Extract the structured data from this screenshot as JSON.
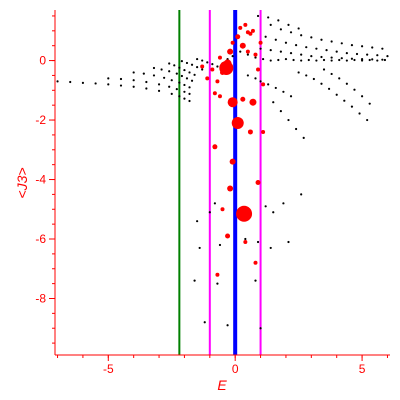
{
  "chart_data": {
    "type": "scatter",
    "title": "",
    "xlabel": "E",
    "ylabel": "<J3>",
    "xlim": [
      -7.1,
      6.1
    ],
    "ylim": [
      -9.9,
      1.7
    ],
    "x_ticks": [
      -5,
      0,
      5
    ],
    "x_tick_labels": [
      "-5",
      "0",
      "5"
    ],
    "y_ticks": [
      0,
      -2,
      -4,
      -6,
      -8
    ],
    "y_tick_labels": [
      "0",
      "-2",
      "-4",
      "-6",
      "-8"
    ],
    "grid": false,
    "legend": "none",
    "vertical_lines": [
      {
        "x": -2.2,
        "color": "#008000",
        "style": "thin"
      },
      {
        "x": -1.0,
        "color": "#ff00ff",
        "style": "thin"
      },
      {
        "x": 0.0,
        "color": "#0000ff",
        "style": "thick"
      },
      {
        "x": 1.0,
        "color": "#ff00ff",
        "style": "thin"
      }
    ],
    "series": [
      {
        "color": "#000000",
        "marker": "small-dot",
        "points": [
          [
            -7.0,
            -0.7
          ],
          [
            -6.5,
            -0.72
          ],
          [
            -6.0,
            -0.75
          ],
          [
            -5.5,
            -0.77
          ],
          [
            -5.0,
            -0.8
          ],
          [
            -4.5,
            -0.84
          ],
          [
            -4.0,
            -0.88
          ],
          [
            -3.5,
            -0.94
          ],
          [
            -3.0,
            -1.02
          ],
          [
            -2.5,
            -1.12
          ],
          [
            -2.2,
            -1.2
          ],
          [
            -2.0,
            -1.28
          ],
          [
            -1.8,
            -1.36
          ],
          [
            -5.0,
            -0.6
          ],
          [
            -4.5,
            -0.62
          ],
          [
            -4.0,
            -0.66
          ],
          [
            -3.5,
            -0.72
          ],
          [
            -3.0,
            -0.8
          ],
          [
            -2.6,
            -0.88
          ],
          [
            -2.3,
            -0.96
          ],
          [
            -2.0,
            -1.05
          ],
          [
            -1.8,
            -1.12
          ],
          [
            -4.0,
            -0.4
          ],
          [
            -3.6,
            -0.44
          ],
          [
            -3.2,
            -0.5
          ],
          [
            -2.8,
            -0.58
          ],
          [
            -2.5,
            -0.66
          ],
          [
            -2.2,
            -0.74
          ],
          [
            -2.0,
            -0.82
          ],
          [
            -1.8,
            -0.9
          ],
          [
            -3.2,
            -0.25
          ],
          [
            -2.9,
            -0.3
          ],
          [
            -2.6,
            -0.36
          ],
          [
            -2.3,
            -0.44
          ],
          [
            -2.1,
            -0.52
          ],
          [
            -1.9,
            -0.6
          ],
          [
            -1.7,
            -0.68
          ],
          [
            -2.6,
            -0.1
          ],
          [
            -2.4,
            -0.16
          ],
          [
            -2.2,
            -0.24
          ],
          [
            -2.0,
            -0.32
          ],
          [
            -1.8,
            -0.4
          ],
          [
            -1.6,
            -0.48
          ],
          [
            -2.1,
            -0.02
          ],
          [
            -1.9,
            -0.08
          ],
          [
            -1.7,
            -0.14
          ],
          [
            -1.5,
            -0.22
          ],
          [
            -1.3,
            -0.3
          ],
          [
            -1.5,
            0.05
          ],
          [
            -1.3,
            0.0
          ],
          [
            -1.1,
            -0.06
          ],
          [
            -0.9,
            -0.12
          ],
          [
            -0.7,
            -0.2
          ],
          [
            -0.5,
            -0.1
          ],
          [
            -0.3,
            0.05
          ],
          [
            -0.1,
            0.15
          ],
          [
            0.2,
            0.3
          ],
          [
            0.5,
            0.2
          ],
          [
            0.8,
            0.1
          ],
          [
            1.1,
            0.05
          ],
          [
            1.4,
            0.0
          ],
          [
            1.7,
            0.02
          ],
          [
            2.0,
            0.05
          ],
          [
            2.3,
            0.02
          ],
          [
            2.6,
            0.0
          ],
          [
            2.9,
            0.02
          ],
          [
            3.2,
            0.0
          ],
          [
            3.5,
            0.02
          ],
          [
            3.8,
            0.0
          ],
          [
            4.1,
            0.02
          ],
          [
            4.4,
            0.0
          ],
          [
            4.7,
            0.02
          ],
          [
            5.0,
            0.0
          ],
          [
            5.3,
            0.02
          ],
          [
            5.6,
            0.0
          ],
          [
            5.9,
            0.02
          ],
          [
            1.0,
            0.4
          ],
          [
            1.4,
            0.35
          ],
          [
            1.8,
            0.3
          ],
          [
            2.2,
            0.25
          ],
          [
            2.6,
            0.2
          ],
          [
            3.0,
            0.15
          ],
          [
            3.4,
            0.12
          ],
          [
            3.8,
            0.1
          ],
          [
            4.2,
            0.08
          ],
          [
            4.6,
            0.06
          ],
          [
            5.0,
            0.05
          ],
          [
            5.4,
            0.04
          ],
          [
            5.8,
            0.03
          ],
          [
            1.2,
            0.8
          ],
          [
            1.6,
            0.7
          ],
          [
            2.0,
            0.6
          ],
          [
            2.4,
            0.52
          ],
          [
            2.8,
            0.45
          ],
          [
            3.2,
            0.4
          ],
          [
            3.6,
            0.35
          ],
          [
            4.0,
            0.3
          ],
          [
            4.4,
            0.25
          ],
          [
            4.8,
            0.22
          ],
          [
            5.2,
            0.2
          ],
          [
            5.6,
            0.18
          ],
          [
            6.0,
            0.15
          ],
          [
            1.4,
            1.2
          ],
          [
            1.8,
            1.05
          ],
          [
            2.2,
            0.95
          ],
          [
            2.6,
            0.85
          ],
          [
            3.0,
            0.78
          ],
          [
            3.4,
            0.7
          ],
          [
            3.8,
            0.64
          ],
          [
            4.2,
            0.58
          ],
          [
            4.6,
            0.52
          ],
          [
            5.0,
            0.48
          ],
          [
            5.4,
            0.44
          ],
          [
            5.8,
            0.4
          ],
          [
            0.9,
            1.5
          ],
          [
            1.3,
            1.45
          ],
          [
            1.7,
            1.35
          ],
          [
            2.1,
            1.2
          ],
          [
            2.5,
            1.08
          ],
          [
            0.5,
            -0.5
          ],
          [
            0.8,
            -0.6
          ],
          [
            1.0,
            -0.7
          ],
          [
            1.3,
            -0.8
          ],
          [
            1.6,
            -0.92
          ],
          [
            1.9,
            -1.05
          ],
          [
            2.2,
            -1.2
          ],
          [
            2.5,
            -0.4
          ],
          [
            2.8,
            -0.5
          ],
          [
            3.1,
            -0.62
          ],
          [
            3.4,
            -0.78
          ],
          [
            3.7,
            -0.95
          ],
          [
            4.0,
            -1.15
          ],
          [
            4.3,
            -1.35
          ],
          [
            4.6,
            -1.55
          ],
          [
            4.9,
            -1.78
          ],
          [
            5.2,
            -2.0
          ],
          [
            3.5,
            -0.3
          ],
          [
            3.8,
            -0.45
          ],
          [
            4.1,
            -0.6
          ],
          [
            4.4,
            -0.78
          ],
          [
            4.7,
            -0.98
          ],
          [
            5.0,
            -1.2
          ],
          [
            5.3,
            -1.45
          ],
          [
            1.5,
            -1.4
          ],
          [
            1.8,
            -1.7
          ],
          [
            2.1,
            -2.0
          ],
          [
            2.4,
            -2.3
          ],
          [
            2.7,
            -2.6
          ],
          [
            -1.5,
            -5.4
          ],
          [
            -1.0,
            -5.1
          ],
          [
            -0.8,
            -4.8
          ],
          [
            0.5,
            -5.0
          ],
          [
            1.2,
            -4.9
          ],
          [
            1.5,
            -5.1
          ],
          [
            1.9,
            -4.8
          ],
          [
            2.6,
            -4.5
          ],
          [
            -1.4,
            -6.3
          ],
          [
            -0.6,
            -6.2
          ],
          [
            0.4,
            -6.0
          ],
          [
            0.9,
            -6.1
          ],
          [
            1.4,
            -6.3
          ],
          [
            2.1,
            -6.1
          ],
          [
            -1.6,
            -7.4
          ],
          [
            -0.7,
            -7.5
          ],
          [
            0.8,
            -7.4
          ],
          [
            -1.2,
            -8.8
          ],
          [
            -0.3,
            -8.9
          ],
          [
            1.0,
            -9.0
          ]
        ]
      },
      {
        "color": "#ff0000",
        "marker": "dot",
        "points": [
          [
            -1.3,
            -0.2,
            2
          ],
          [
            -1.1,
            -0.6,
            2
          ],
          [
            -0.9,
            -0.3,
            2
          ],
          [
            -0.7,
            -0.7,
            2
          ],
          [
            -0.6,
            0.1,
            2
          ],
          [
            -0.5,
            -0.4,
            2.5
          ],
          [
            -0.3,
            -0.1,
            4
          ],
          [
            -0.35,
            -0.25,
            7
          ],
          [
            -0.2,
            0.3,
            3
          ],
          [
            -0.1,
            0.6,
            2
          ],
          [
            0.1,
            0.8,
            2.5
          ],
          [
            0.3,
            0.5,
            3
          ],
          [
            0.5,
            0.3,
            2
          ],
          [
            0.6,
            0.9,
            2
          ],
          [
            0.8,
            0.2,
            2
          ],
          [
            0.9,
            -0.3,
            2
          ],
          [
            1.0,
            0.6,
            2
          ],
          [
            1.1,
            -0.8,
            2
          ],
          [
            -0.8,
            -1.1,
            2
          ],
          [
            -0.6,
            -1.2,
            2
          ],
          [
            0.2,
            1.1,
            2
          ],
          [
            0.4,
            1.2,
            2
          ],
          [
            0.5,
            0.95,
            2
          ],
          [
            0.7,
            1.0,
            2
          ],
          [
            0.3,
            -1.3,
            2.5
          ],
          [
            0.7,
            -1.4,
            3.5
          ],
          [
            -0.1,
            -1.4,
            5
          ],
          [
            0.1,
            -2.1,
            6
          ],
          [
            -0.8,
            -2.9,
            2.5
          ],
          [
            0.6,
            -2.4,
            2.5
          ],
          [
            1.1,
            -2.4,
            2
          ],
          [
            -0.1,
            -3.4,
            3
          ],
          [
            -0.2,
            -4.3,
            3
          ],
          [
            0.35,
            -5.15,
            8
          ],
          [
            0.9,
            -4.1,
            2.5
          ],
          [
            -0.3,
            -5.9,
            2.5
          ],
          [
            0.4,
            -6.1,
            2
          ],
          [
            -0.5,
            -5.0,
            2
          ],
          [
            0.8,
            -6.8,
            2
          ],
          [
            -0.7,
            -7.2,
            2
          ]
        ]
      }
    ]
  }
}
